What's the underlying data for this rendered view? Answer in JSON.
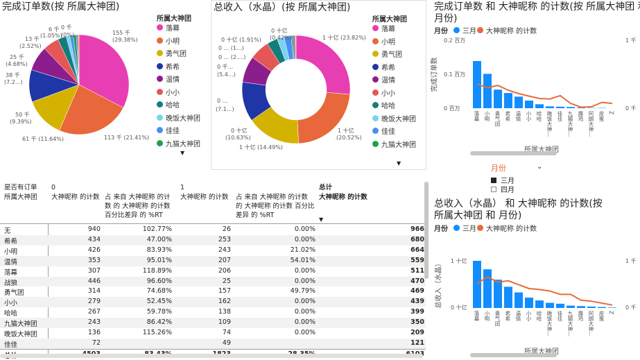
{
  "pie1": {
    "title": "完成订单数(按 所属大神团)",
    "legend_title": "所属大神团",
    "legend": [
      "落幕",
      "小明",
      "勇气团",
      "希希",
      "温情",
      "小小",
      "哈哈",
      "晚饭大神团",
      "佳佳",
      "九猫大神团"
    ],
    "colors": [
      "#e83eb3",
      "#e8683b",
      "#d4b300",
      "#1f36a6",
      "#8b1e8c",
      "#e55656",
      "#157c7c",
      "#7ad3f0",
      "#4b8ef0",
      "#1ea34b",
      "#8a5cd6",
      "#f0a020"
    ],
    "labels": {
      "l155": "155 千",
      "l155p": "(29.38%)",
      "l113": "113 千 (21.41%)",
      "l61": "61 千 (11.64%)",
      "l50": "50 千",
      "l50p": "(9.39%)",
      "l38": "38 千",
      "l38p": "(7.2...)",
      "l25": "25 千",
      "l25p": "(4.68%)",
      "l13": "13 千",
      "l13p": "(2.52%)",
      "l6": "6 千",
      "l6p": "(1.05%)",
      "l0": "0 千",
      "l0p": "(0%)"
    },
    "values": [
      29.38,
      21.41,
      11.64,
      9.39,
      7.2,
      4.68,
      2.52,
      1.05,
      1.0,
      0.9,
      0.5,
      0.3
    ]
  },
  "pie2": {
    "title": "总收入（水晶）(按 所属大神团)",
    "legend_title": "所属大神团",
    "legend": [
      "落幕",
      "小明",
      "勇气团",
      "希希",
      "温情",
      "小小",
      "哈哈",
      "晚饭大神团",
      "佳佳",
      "九猫大神团"
    ],
    "labels": {
      "a": "1 十亿 (23.82%)",
      "b": "1 十亿",
      "bp": "(20.52%)",
      "c": "1 十亿 (14.49%)",
      "d": "0 十亿",
      "dp": "(10.63%)",
      "e": "0 ...",
      "ep": "(7.1...)",
      "f": "0 千...",
      "fp": "(5.4...)",
      "g": "0 ... (2....)",
      "h": "0 ... (1...)",
      "i": "0 十亿 (1.91%)",
      "j": "0 十亿",
      "jp": "(0.42%)"
    },
    "values": [
      23.82,
      20.52,
      14.49,
      10.63,
      7.1,
      5.4,
      2.9,
      1.9,
      1.91,
      0.42,
      0.6,
      0.3
    ]
  },
  "table": {
    "h_group": "是否有订单",
    "h_row": "所属大神团",
    "h0": "0",
    "h1": "1",
    "h_total": "总计",
    "h_c1": "大神昵称 的计数",
    "h_c2a": "占 来自 大神昵称 的计",
    "h_c2b": "数 的 大神昵称 的计数",
    "h_c2c": "百分比差异 的 %RT",
    "h_c3": "大神昵称 的计数",
    "h_c4a": "占 来自 大神昵称 的计数",
    "h_c4b": "的 大神昵称 的计数 百分比",
    "h_c4c": "差异 的 %RT",
    "h_c5": "大神昵称 的计数",
    "rows": [
      [
        "无",
        "940",
        "102.77%",
        "26",
        "0.00%",
        "966"
      ],
      [
        "希希",
        "434",
        "47.00%",
        "253",
        "0.00%",
        "680"
      ],
      [
        "小明",
        "426",
        "83.93%",
        "243",
        "21.02%",
        "664"
      ],
      [
        "温情",
        "353",
        "95.01%",
        "207",
        "54.01%",
        "559"
      ],
      [
        "落幕",
        "307",
        "118.89%",
        "206",
        "0.00%",
        "511"
      ],
      [
        "战狼",
        "446",
        "96.60%",
        "25",
        "0.00%",
        "470"
      ],
      [
        "勇气团",
        "314",
        "74.68%",
        "157",
        "49.79%",
        "469"
      ],
      [
        "小小",
        "279",
        "52.45%",
        "162",
        "0.00%",
        "439"
      ],
      [
        "哈哈",
        "267",
        "59.78%",
        "138",
        "0.00%",
        "399"
      ],
      [
        "九猫大神团",
        "243",
        "86.42%",
        "109",
        "0.00%",
        "350"
      ],
      [
        "晚饭大神团",
        "136",
        "115.26%",
        "74",
        "0.00%",
        "209"
      ],
      [
        "佳佳",
        "72",
        "",
        "49",
        "",
        "121"
      ]
    ],
    "total": [
      "总计",
      "4503",
      "83.43%",
      "1823",
      "28.35%",
      "6103"
    ]
  },
  "chart3": {
    "title1": "完成订单数 和 大神昵称 的计数(按 所属大神团 和",
    "title2": "月份)",
    "legend_label": "月份",
    "leg1": "三月",
    "leg2": "大神昵称 的计数",
    "yl_top": "0.2 百万",
    "yl_mid": "0.1 百万",
    "yl_bot": "0 百万",
    "yr_top": "1 千",
    "yr_bot": "0 千",
    "ylabel": "完成订单数",
    "xlabel": "所属大神团",
    "cats": [
      "落幕",
      "小明",
      "勇气团",
      "希希",
      "温情",
      "小小",
      "哈哈",
      "晚饭大神...",
      "佳佳",
      "九猫大神...",
      "露鸡",
      "阿朗大神...",
      "皮蛋",
      "Z"
    ]
  },
  "slicer": {
    "title": "月份",
    "items": [
      "三月",
      "四月"
    ]
  },
  "chart4": {
    "title1": "总收入（水晶） 和 大神昵称 的计数(按",
    "title2": "所属大神团 和 月份)",
    "legend_label": "月份",
    "leg1": "三月",
    "leg2": "大神昵称 的计数",
    "yl_top": "1 十亿",
    "yl_bot": "0 十亿",
    "yr_top": "1 千",
    "yr_bot": "0 千",
    "ylabel": "总收入（水晶）",
    "xlabel": "所属大神团",
    "cats": [
      "落幕",
      "小明",
      "勇气团",
      "希希",
      "温情",
      "小小",
      "哈哈",
      "晚饭大神...",
      "佳佳",
      "九猫大神...",
      "露鸡",
      "阿朗大神...",
      "皮蛋",
      "Z"
    ]
  },
  "chart_data": [
    {
      "type": "pie",
      "title": "完成订单数(按 所属大神团)",
      "categories": [
        "落幕",
        "小明",
        "勇气团",
        "希希",
        "温情",
        "小小",
        "哈哈"
      ],
      "values": [
        155,
        113,
        61,
        50,
        38,
        25,
        13
      ]
    },
    {
      "type": "pie",
      "title": "总收入（水晶）(按 所属大神团)",
      "categories": [
        "落幕",
        "小明",
        "勇气团",
        "希希",
        "温情",
        "小小"
      ],
      "values": [
        23.82,
        20.52,
        14.49,
        10.63,
        7.1,
        5.4
      ]
    },
    {
      "type": "bar",
      "title": "完成订单数 和 大神昵称 的计数(按 所属大神团 和 月份)",
      "categories": [
        "落幕",
        "小明",
        "勇气团",
        "希希",
        "温情",
        "小小",
        "哈哈",
        "晚饭大神...",
        "佳佳",
        "九猫大神...",
        "露鸡",
        "阿朗大神...",
        "皮蛋",
        "Z"
      ],
      "series": [
        {
          "name": "三月",
          "values": [
            155,
            113,
            61,
            50,
            38,
            25,
            13,
            6,
            5,
            4,
            2,
            1,
            1,
            0
          ]
        },
        {
          "name": "大神昵称 的计数",
          "values": [
            500,
            420,
            470,
            370,
            300,
            250,
            200,
            190,
            260,
            100,
            20,
            30,
            120,
            100
          ]
        }
      ]
    },
    {
      "type": "bar",
      "title": "总收入（水晶） 和 大神昵称 的计数(按 所属大神团 和 月份)",
      "categories": [
        "落幕",
        "小明",
        "勇气团",
        "希希",
        "温情",
        "小小",
        "哈哈",
        "晚饭大神...",
        "佳佳",
        "九猫大神...",
        "露鸡",
        "阿朗大神...",
        "皮蛋",
        "Z"
      ],
      "series": [
        {
          "name": "三月",
          "values": [
            1.0,
            0.82,
            0.6,
            0.45,
            0.33,
            0.22,
            0.16,
            0.11,
            0.09,
            0.05,
            0.04,
            0.03,
            0.02,
            0.01
          ]
        },
        {
          "name": "大神昵称 的计数",
          "values": [
            500,
            640,
            530,
            560,
            480,
            400,
            380,
            350,
            280,
            280,
            160,
            140,
            100,
            60
          ]
        }
      ]
    }
  ]
}
